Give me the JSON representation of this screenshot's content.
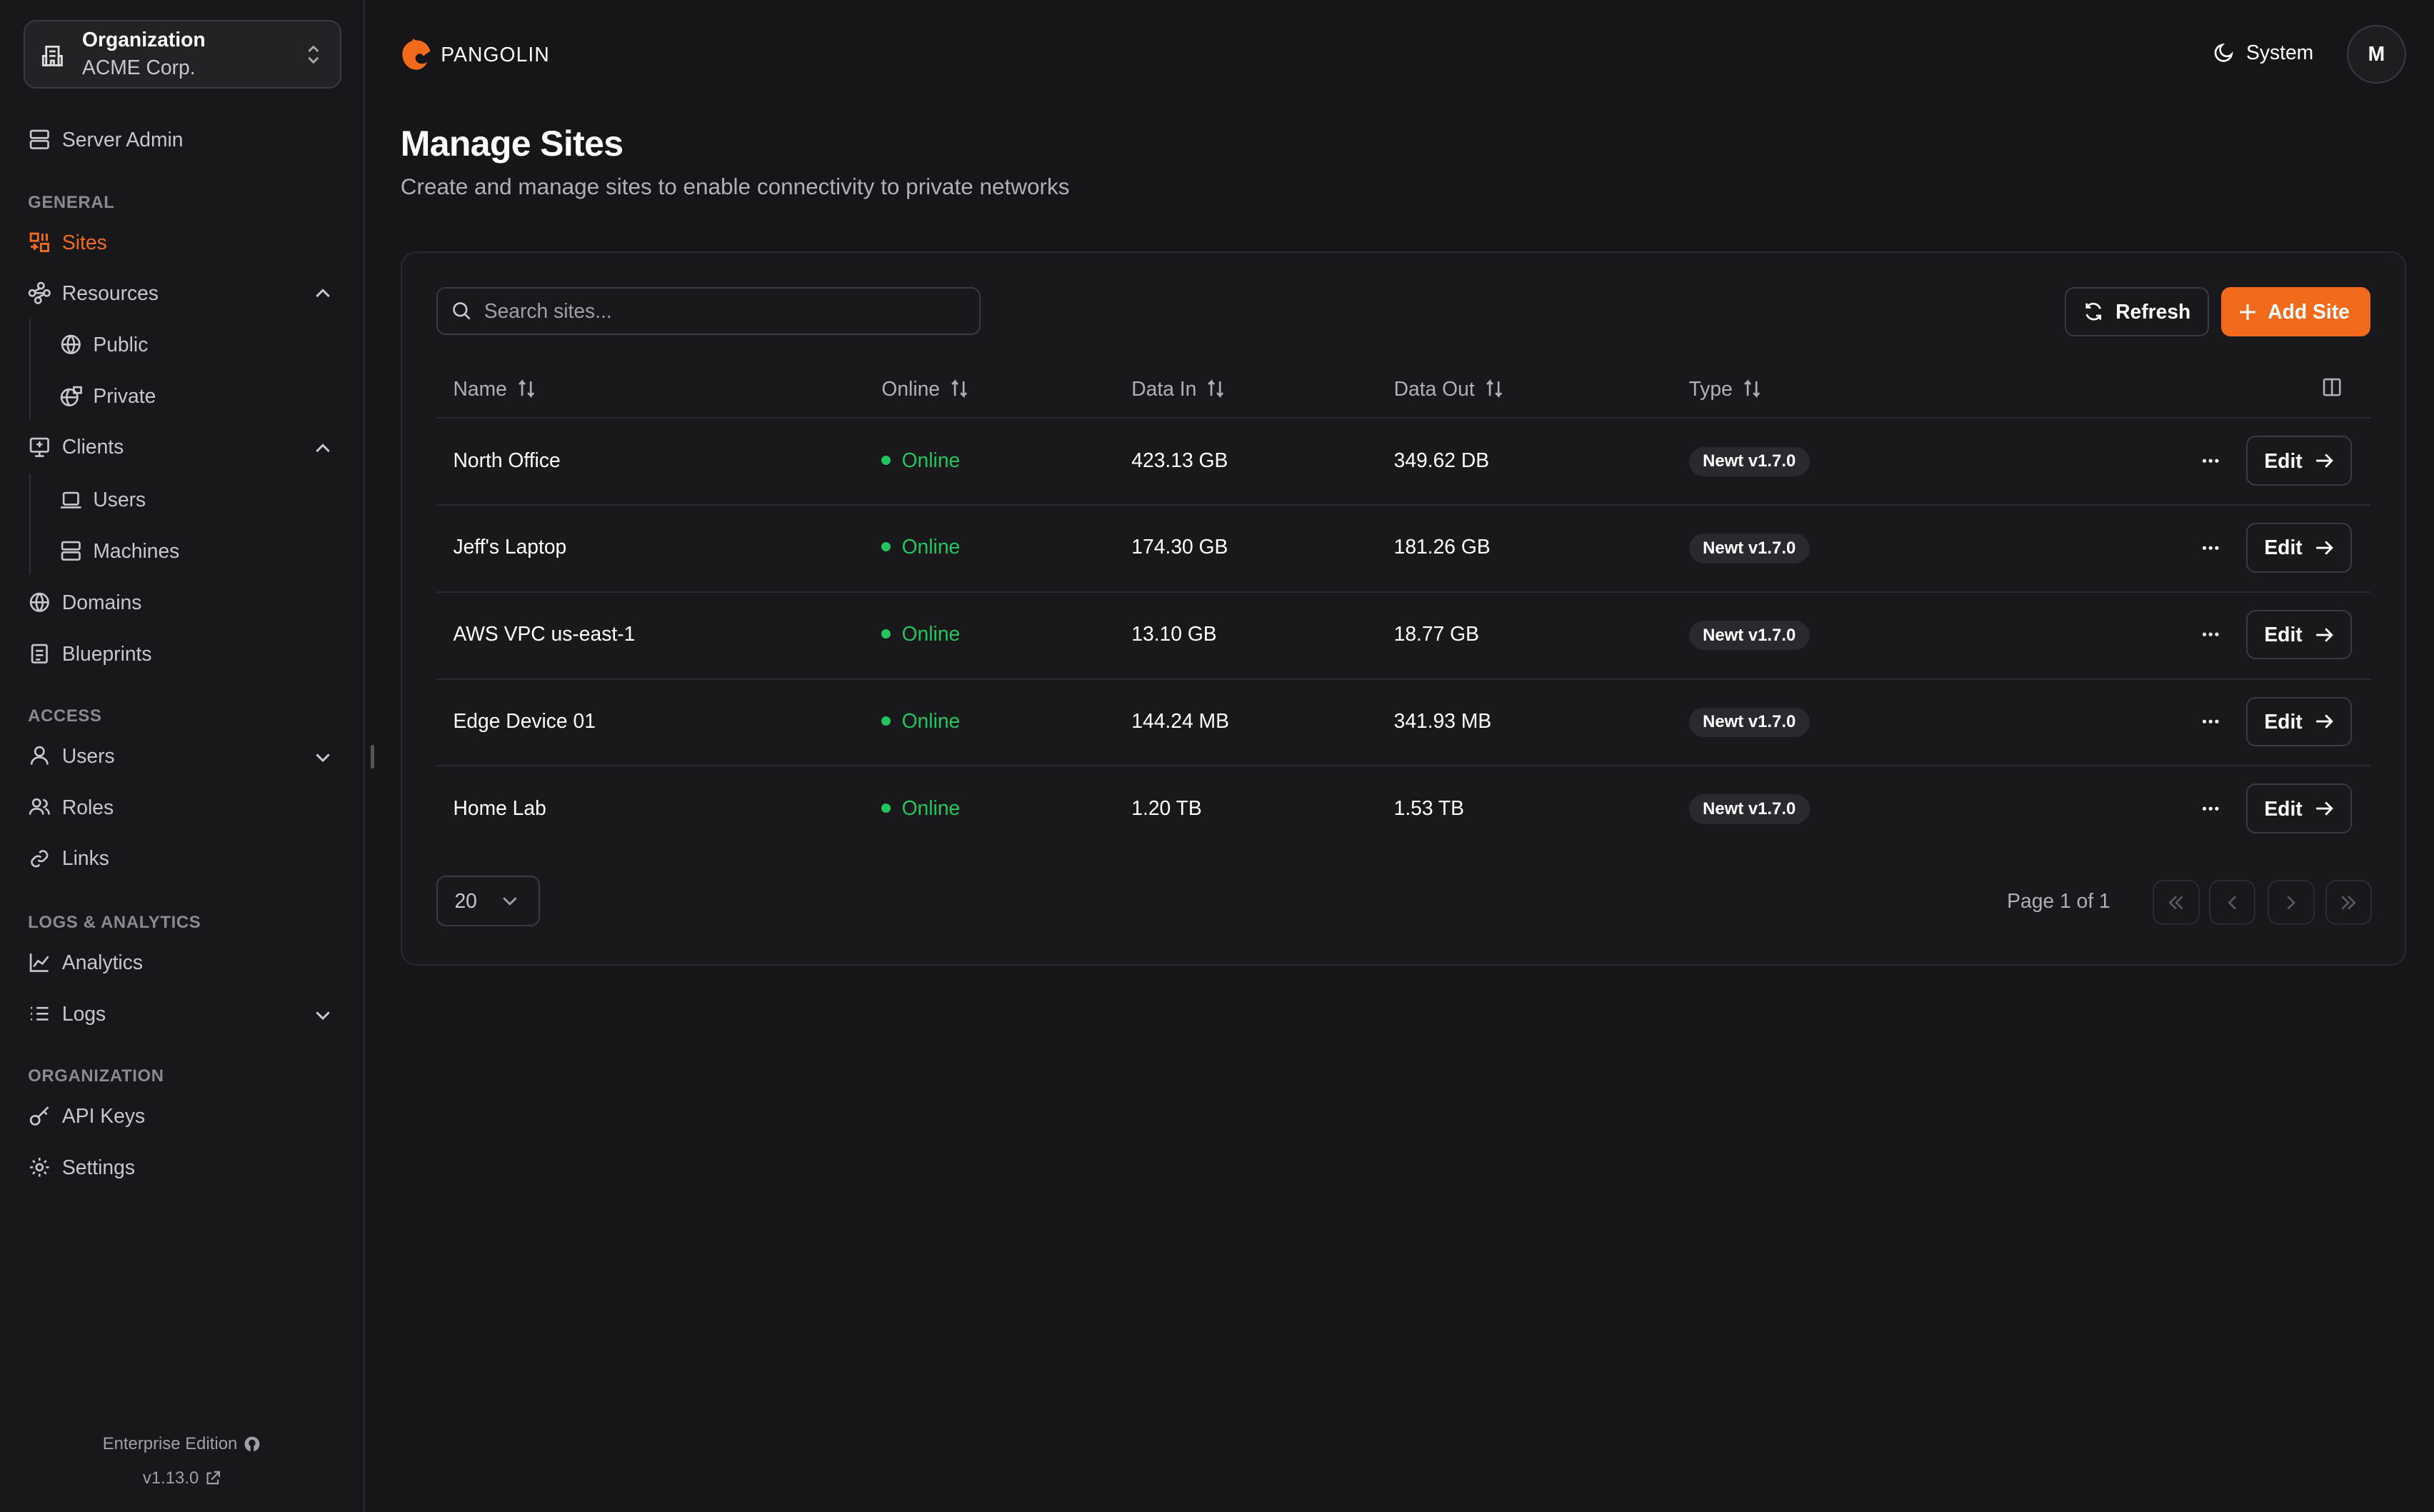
{
  "colors": {
    "accent": "#f26b1d",
    "online": "#22c55e",
    "background": "#161618"
  },
  "org": {
    "label": "Organization",
    "name": "ACME Corp."
  },
  "sidebar": {
    "server_admin": "Server Admin",
    "sections": {
      "general": "GENERAL",
      "access": "ACCESS",
      "logs": "LOGS & ANALYTICS",
      "organization": "ORGANIZATION"
    },
    "items": {
      "sites": "Sites",
      "resources": "Resources",
      "public": "Public",
      "private": "Private",
      "clients": "Clients",
      "users_client": "Users",
      "machines": "Machines",
      "domains": "Domains",
      "blueprints": "Blueprints",
      "users": "Users",
      "roles": "Roles",
      "links": "Links",
      "analytics": "Analytics",
      "logs": "Logs",
      "api_keys": "API Keys",
      "settings": "Settings"
    },
    "footer": {
      "edition": "Enterprise Edition",
      "version": "v1.13.0"
    }
  },
  "header": {
    "brand": "PANGOLIN",
    "theme": "System",
    "avatar": "M"
  },
  "page": {
    "title": "Manage Sites",
    "subtitle": "Create and manage sites to enable connectivity to private networks"
  },
  "toolbar": {
    "search_placeholder": "Search sites...",
    "refresh": "Refresh",
    "add": "Add Site"
  },
  "table": {
    "columns": [
      "Name",
      "Online",
      "Data In",
      "Data Out",
      "Type"
    ],
    "rows": [
      {
        "name": "North Office",
        "online": "Online",
        "data_in": "423.13 GB",
        "data_out": "349.62 DB",
        "type": "Newt v1.7.0",
        "action": "Edit"
      },
      {
        "name": "Jeff's Laptop",
        "online": "Online",
        "data_in": "174.30 GB",
        "data_out": "181.26 GB",
        "type": "Newt v1.7.0",
        "action": "Edit"
      },
      {
        "name": "AWS VPC us-east-1",
        "online": "Online",
        "data_in": "13.10 GB",
        "data_out": "18.77 GB",
        "type": "Newt v1.7.0",
        "action": "Edit"
      },
      {
        "name": "Edge Device 01",
        "online": "Online",
        "data_in": "144.24 MB",
        "data_out": "341.93 MB",
        "type": "Newt v1.7.0",
        "action": "Edit"
      },
      {
        "name": "Home Lab",
        "online": "Online",
        "data_in": "1.20 TB",
        "data_out": "1.53 TB",
        "type": "Newt v1.7.0",
        "action": "Edit"
      }
    ]
  },
  "pagination": {
    "page_size": "20",
    "info": "Page 1 of 1"
  }
}
